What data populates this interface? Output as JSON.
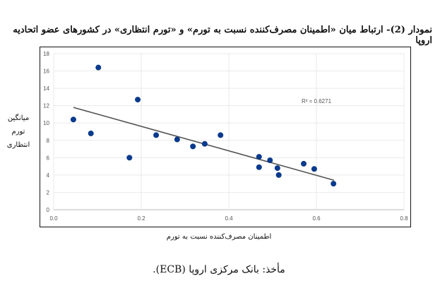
{
  "title": "نمودار (2)- ارتباط میان «اطمینان مصرف‌کننده نسبت به تورم» و «تورم انتظاری» در کشورهای عضو اتحادیه اروپا",
  "source": "مأخذ: بانک مرکزی اروپا (ECB).",
  "chart_data": {
    "type": "scatter",
    "xlabel": "اطمینان مصرف‌کننده نسبت به تورم",
    "ylabel_lines": [
      "میانگین",
      "تورم",
      "انتظاری"
    ],
    "xlim": [
      0,
      0.8
    ],
    "ylim": [
      0,
      18
    ],
    "xticks": [
      "0.0",
      "0.2",
      "0.4",
      "0.6",
      "0.8"
    ],
    "yticks": [
      "0",
      "2",
      "4",
      "6",
      "8",
      "10",
      "12",
      "14",
      "16",
      "18"
    ],
    "grid": true,
    "point_color": "#0a3a8c",
    "trendline_color": "#555555",
    "points": [
      [
        0.045,
        10.4
      ],
      [
        0.085,
        8.8
      ],
      [
        0.102,
        16.4
      ],
      [
        0.173,
        6.0
      ],
      [
        0.192,
        12.7
      ],
      [
        0.234,
        8.6
      ],
      [
        0.282,
        8.1
      ],
      [
        0.318,
        7.3
      ],
      [
        0.345,
        7.6
      ],
      [
        0.381,
        8.6
      ],
      [
        0.469,
        6.1
      ],
      [
        0.469,
        4.9
      ],
      [
        0.494,
        5.7
      ],
      [
        0.511,
        4.8
      ],
      [
        0.514,
        4.0
      ],
      [
        0.571,
        5.3
      ],
      [
        0.595,
        4.7
      ],
      [
        0.639,
        3.0
      ]
    ],
    "trendline": [
      [
        0.045,
        11.8
      ],
      [
        0.64,
        3.4
      ]
    ],
    "annotation": "R² = 0.6271"
  }
}
